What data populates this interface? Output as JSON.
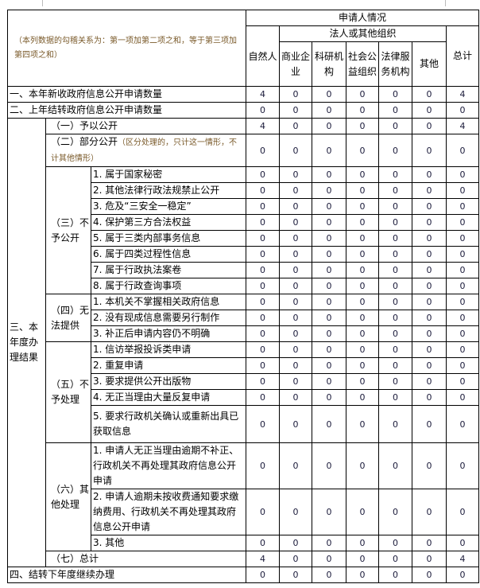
{
  "header": {
    "note": "（本列数据的勾稽关系为：第一项加第二项之和，等于第三项加第四项之和）",
    "applicant": "申请人情况",
    "natural_person": "自然人",
    "legal_org": "法人或其他组织",
    "org_types": [
      "商业企业",
      "科研机构",
      "社会公益组织",
      "法律服务机构",
      "其他"
    ],
    "total": "总计"
  },
  "rows": [
    {
      "label": "一、本年新收政府信息公开申请数量",
      "values": [
        4,
        0,
        0,
        0,
        0,
        0,
        4
      ]
    },
    {
      "label": "二、上年结转政府信息公开申请数量",
      "values": [
        0,
        0,
        0,
        0,
        0,
        0,
        0
      ]
    },
    {
      "section": "三、本年度办理结果",
      "groups": [
        {
          "label": "（一）予以公开",
          "values": [
            4,
            0,
            0,
            0,
            0,
            0,
            4
          ]
        },
        {
          "label": "（二）部分公开",
          "note": "（区分处理的，只计这一情形，不计其他情形）",
          "values": [
            0,
            0,
            0,
            0,
            0,
            0,
            0
          ]
        },
        {
          "label": "（三）不予公开",
          "items": [
            {
              "label": "1. 属于国家秘密",
              "values": [
                0,
                0,
                0,
                0,
                0,
                0,
                0
              ]
            },
            {
              "label": "2. 其他法律行政法规禁止公开",
              "values": [
                0,
                0,
                0,
                0,
                0,
                0,
                0
              ]
            },
            {
              "label": "3. 危及“三安全一稳定”",
              "values": [
                0,
                0,
                0,
                0,
                0,
                0,
                0
              ]
            },
            {
              "label": "4. 保护第三方合法权益",
              "values": [
                0,
                0,
                0,
                0,
                0,
                0,
                0
              ]
            },
            {
              "label": "5. 属于三类内部事务信息",
              "values": [
                0,
                0,
                0,
                0,
                0,
                0,
                0
              ]
            },
            {
              "label": "6. 属于四类过程性信息",
              "values": [
                0,
                0,
                0,
                0,
                0,
                0,
                0
              ]
            },
            {
              "label": "7. 属于行政执法案卷",
              "values": [
                0,
                0,
                0,
                0,
                0,
                0,
                0
              ]
            },
            {
              "label": "8. 属于行政查询事项",
              "values": [
                0,
                0,
                0,
                0,
                0,
                0,
                0
              ]
            }
          ]
        },
        {
          "label": "（四）无法提供",
          "items": [
            {
              "label": "1. 本机关不掌握相关政府信息",
              "values": [
                0,
                0,
                0,
                0,
                0,
                0,
                0
              ]
            },
            {
              "label": "2. 没有现成信息需要另行制作",
              "values": [
                0,
                0,
                0,
                0,
                0,
                0,
                0
              ]
            },
            {
              "label": "3. 补正后申请内容仍不明确",
              "values": [
                0,
                0,
                0,
                0,
                0,
                0,
                0
              ]
            }
          ]
        },
        {
          "label": "（五）不予处理",
          "items": [
            {
              "label": "1. 信访举报投诉类申请",
              "values": [
                0,
                0,
                0,
                0,
                0,
                0,
                0
              ]
            },
            {
              "label": "2. 重复申请",
              "values": [
                0,
                0,
                0,
                0,
                0,
                0,
                0
              ]
            },
            {
              "label": "3. 要求提供公开出版物",
              "values": [
                0,
                0,
                0,
                0,
                0,
                0,
                0
              ]
            },
            {
              "label": "4. 无正当理由大量反复申请",
              "values": [
                0,
                0,
                0,
                0,
                0,
                0,
                0
              ]
            },
            {
              "label": "5. 要求行政机关确认或重新出具已获取信息",
              "values": [
                0,
                0,
                0,
                0,
                0,
                0,
                0
              ]
            }
          ]
        },
        {
          "label": "（六）其他处理",
          "items": [
            {
              "label": "1. 申请人无正当理由逾期不补正、行政机关不再处理其政府信息公开申请",
              "values": [
                0,
                0,
                0,
                0,
                0,
                0,
                0
              ]
            },
            {
              "label": "2. 申请人逾期未按收费通知要求缴纳费用、行政机关不再处理其政府信息公开申请",
              "values": [
                0,
                0,
                0,
                0,
                0,
                0,
                0
              ]
            },
            {
              "label": "3. 其他",
              "values": [
                0,
                0,
                0,
                0,
                0,
                0,
                0
              ]
            }
          ]
        },
        {
          "label": "（七）总计",
          "values": [
            4,
            0,
            0,
            0,
            0,
            0,
            4
          ]
        }
      ]
    },
    {
      "label": "四、结转下年度继续办理",
      "values": [
        0,
        0,
        0,
        0,
        0,
        0,
        0
      ]
    }
  ]
}
